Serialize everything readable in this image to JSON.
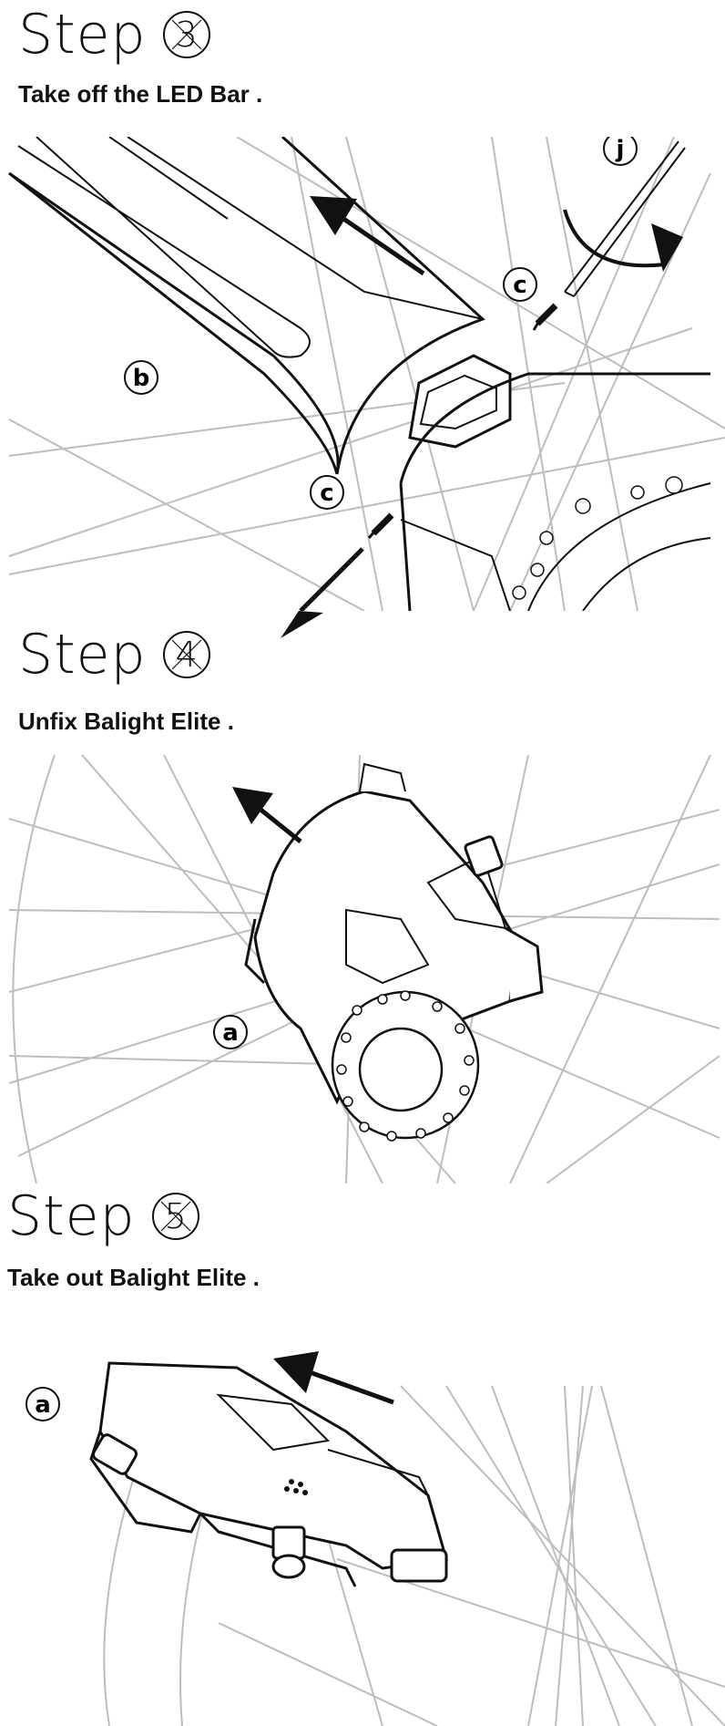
{
  "steps": [
    {
      "word": "Step",
      "number": "3",
      "instruction": "Take off the LED Bar",
      "callouts": [
        "j",
        "c",
        "b",
        "c"
      ]
    },
    {
      "word": "Step",
      "number": "4",
      "instruction": "Unfix Balight Elite",
      "callouts": [
        "a"
      ]
    },
    {
      "word": "Step",
      "number": "5",
      "instruction": "Take out Balight Elite",
      "callouts": [
        "a"
      ]
    }
  ],
  "colors": {
    "ink": "#111111",
    "spoke": "#bdbdbd"
  }
}
